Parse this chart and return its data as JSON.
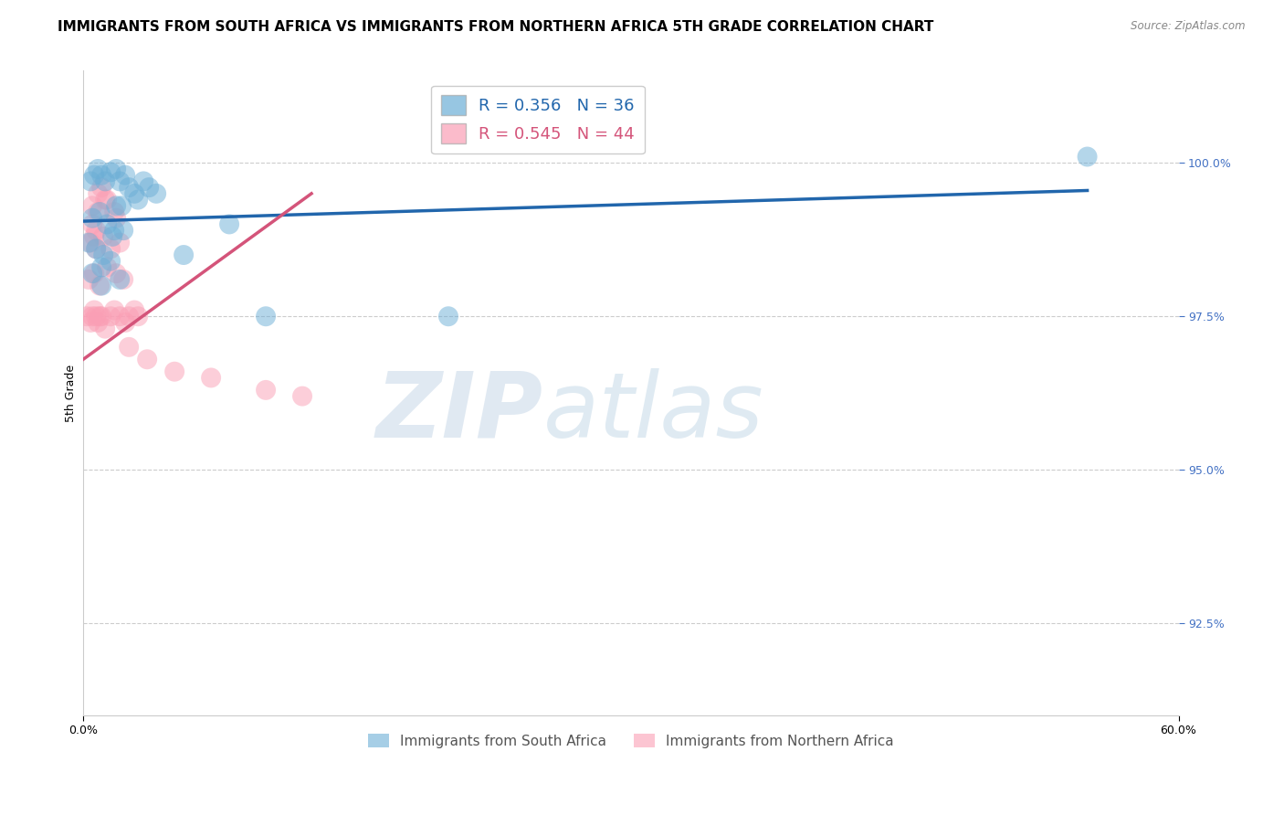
{
  "title": "IMMIGRANTS FROM SOUTH AFRICA VS IMMIGRANTS FROM NORTHERN AFRICA 5TH GRADE CORRELATION CHART",
  "source_text": "Source: ZipAtlas.com",
  "xlabel_blue": "Immigrants from South Africa",
  "xlabel_pink": "Immigrants from Northern Africa",
  "ylabel": "5th Grade",
  "xlim": [
    0.0,
    60.0
  ],
  "ylim": [
    91.0,
    101.5
  ],
  "yticks": [
    92.5,
    95.0,
    97.5,
    100.0
  ],
  "xticks": [
    0.0,
    60.0
  ],
  "xtick_labels": [
    "0.0%",
    "60.0%"
  ],
  "ytick_labels": [
    "92.5%",
    "95.0%",
    "97.5%",
    "100.0%"
  ],
  "blue_color": "#6baed6",
  "pink_color": "#fa9fb5",
  "blue_line_color": "#2166ac",
  "pink_line_color": "#d4547a",
  "legend_blue_label": "R = 0.356   N = 36",
  "legend_pink_label": "R = 0.545   N = 44",
  "blue_scatter_x": [
    0.4,
    0.6,
    0.8,
    1.0,
    1.2,
    1.5,
    1.8,
    2.0,
    2.3,
    2.5,
    2.8,
    3.0,
    3.3,
    3.6,
    4.0,
    0.5,
    0.9,
    1.3,
    1.7,
    2.1,
    0.3,
    0.7,
    1.1,
    1.6,
    2.2,
    0.5,
    1.0,
    1.5,
    2.0,
    5.5,
    8.0,
    10.0,
    20.0,
    55.0,
    1.0,
    1.8
  ],
  "blue_scatter_y": [
    99.7,
    99.8,
    99.9,
    99.8,
    99.7,
    99.85,
    99.9,
    99.7,
    99.8,
    99.6,
    99.5,
    99.4,
    99.7,
    99.6,
    99.5,
    99.1,
    99.2,
    99.0,
    98.9,
    99.3,
    98.7,
    98.6,
    98.5,
    98.8,
    98.9,
    98.2,
    98.3,
    98.4,
    98.1,
    98.5,
    99.0,
    97.5,
    97.5,
    100.1,
    98.0,
    99.3
  ],
  "pink_scatter_x": [
    0.2,
    0.4,
    0.5,
    0.6,
    0.7,
    0.8,
    0.9,
    1.0,
    1.2,
    1.5,
    1.7,
    2.0,
    2.3,
    2.5,
    2.8,
    3.0,
    0.3,
    0.6,
    0.9,
    1.3,
    1.8,
    2.2,
    0.4,
    0.7,
    1.1,
    1.5,
    2.0,
    0.5,
    0.8,
    1.2,
    1.8,
    0.5,
    0.6,
    0.7,
    0.8,
    1.0,
    1.3,
    1.7,
    2.5,
    3.5,
    5.0,
    7.0,
    10.0,
    12.0
  ],
  "pink_scatter_y": [
    97.5,
    97.4,
    97.5,
    97.6,
    97.5,
    97.4,
    97.5,
    97.5,
    97.3,
    97.5,
    97.6,
    97.5,
    97.4,
    97.5,
    97.6,
    97.5,
    98.1,
    98.2,
    98.0,
    98.3,
    98.2,
    98.1,
    98.7,
    98.9,
    98.8,
    98.6,
    98.7,
    99.3,
    99.2,
    99.4,
    99.1,
    99.0,
    98.8,
    98.6,
    99.5,
    99.6,
    99.4,
    99.2,
    97.0,
    96.8,
    96.6,
    96.5,
    96.3,
    96.2
  ],
  "blue_trendline_x": [
    0.0,
    55.0
  ],
  "blue_trendline_y": [
    99.05,
    99.55
  ],
  "pink_trendline_x": [
    0.0,
    12.5
  ],
  "pink_trendline_y": [
    96.8,
    99.5
  ],
  "watermark_zip": "ZIP",
  "watermark_atlas": "atlas",
  "title_fontsize": 11,
  "axis_fontsize": 9,
  "tick_fontsize": 9,
  "legend_fontsize": 13
}
